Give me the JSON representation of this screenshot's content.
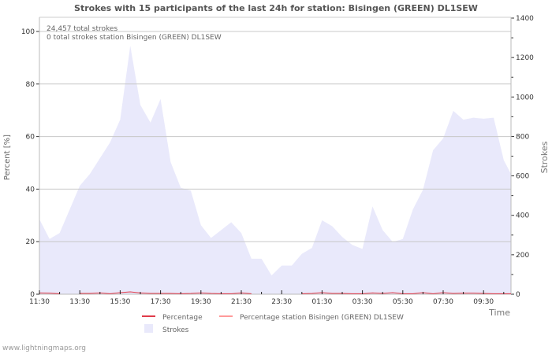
{
  "chart_data": {
    "type": "area",
    "title": "Strokes with 15 participants of the last 24h for station: Bisingen (GREEN) DL1SEW",
    "xlabel": "Time",
    "ylabel_left": "Percent   [%]",
    "ylabel_right": "Strokes",
    "ylim_left": [
      0,
      100
    ],
    "ylim_right": [
      0,
      1400
    ],
    "yticks_left": [
      "0",
      "20",
      "40",
      "60",
      "80",
      "100"
    ],
    "yticks_right": [
      "0",
      "200",
      "400",
      "600",
      "800",
      "1000",
      "1200",
      "1400"
    ],
    "xticks": [
      "11:30",
      "13:30",
      "15:30",
      "17:30",
      "19:30",
      "21:30",
      "23:30",
      "01:30",
      "03:30",
      "05:30",
      "07:30",
      "09:30"
    ],
    "x_step_minutes": 30,
    "grid": true,
    "annotations": [
      "24,457 total strokes",
      "0 total strokes station Bisingen (GREEN) DL1SEW"
    ],
    "series": [
      {
        "name": "Strokes",
        "axis": "right",
        "color": "#e9e9fb",
        "values": [
          380,
          280,
          310,
          430,
          550,
          610,
          690,
          770,
          885,
          1260,
          960,
          870,
          990,
          670,
          540,
          525,
          350,
          285,
          325,
          365,
          310,
          180,
          180,
          95,
          145,
          145,
          205,
          235,
          375,
          345,
          290,
          250,
          230,
          445,
          325,
          265,
          280,
          430,
          530,
          730,
          790,
          930,
          885,
          895,
          890,
          895,
          680,
          610
        ]
      },
      {
        "name": "Percentage",
        "axis": "left",
        "color": "#e03b4a",
        "values": [
          0.5,
          0.4,
          0.2,
          null,
          0.3,
          0.3,
          0.5,
          0.2,
          0.6,
          0.9,
          0.5,
          0.3,
          0.3,
          0.3,
          0.2,
          0.3,
          0.5,
          0.3,
          0.2,
          0.2,
          0.5,
          0.2,
          null,
          null,
          null,
          null,
          0.2,
          0.3,
          0.6,
          0.3,
          0.3,
          0.2,
          0.2,
          0.5,
          0.3,
          0.6,
          0.2,
          0.2,
          0.6,
          0.2,
          0.6,
          0.3,
          0.4,
          0.4,
          0.3,
          0.2,
          0.2,
          0.2
        ]
      },
      {
        "name": "Percentage station Bisingen (GREEN) DL1SEW",
        "axis": "left",
        "color": "#ff9a9a",
        "values": []
      }
    ]
  },
  "footer": "www.lightningmaps.org"
}
